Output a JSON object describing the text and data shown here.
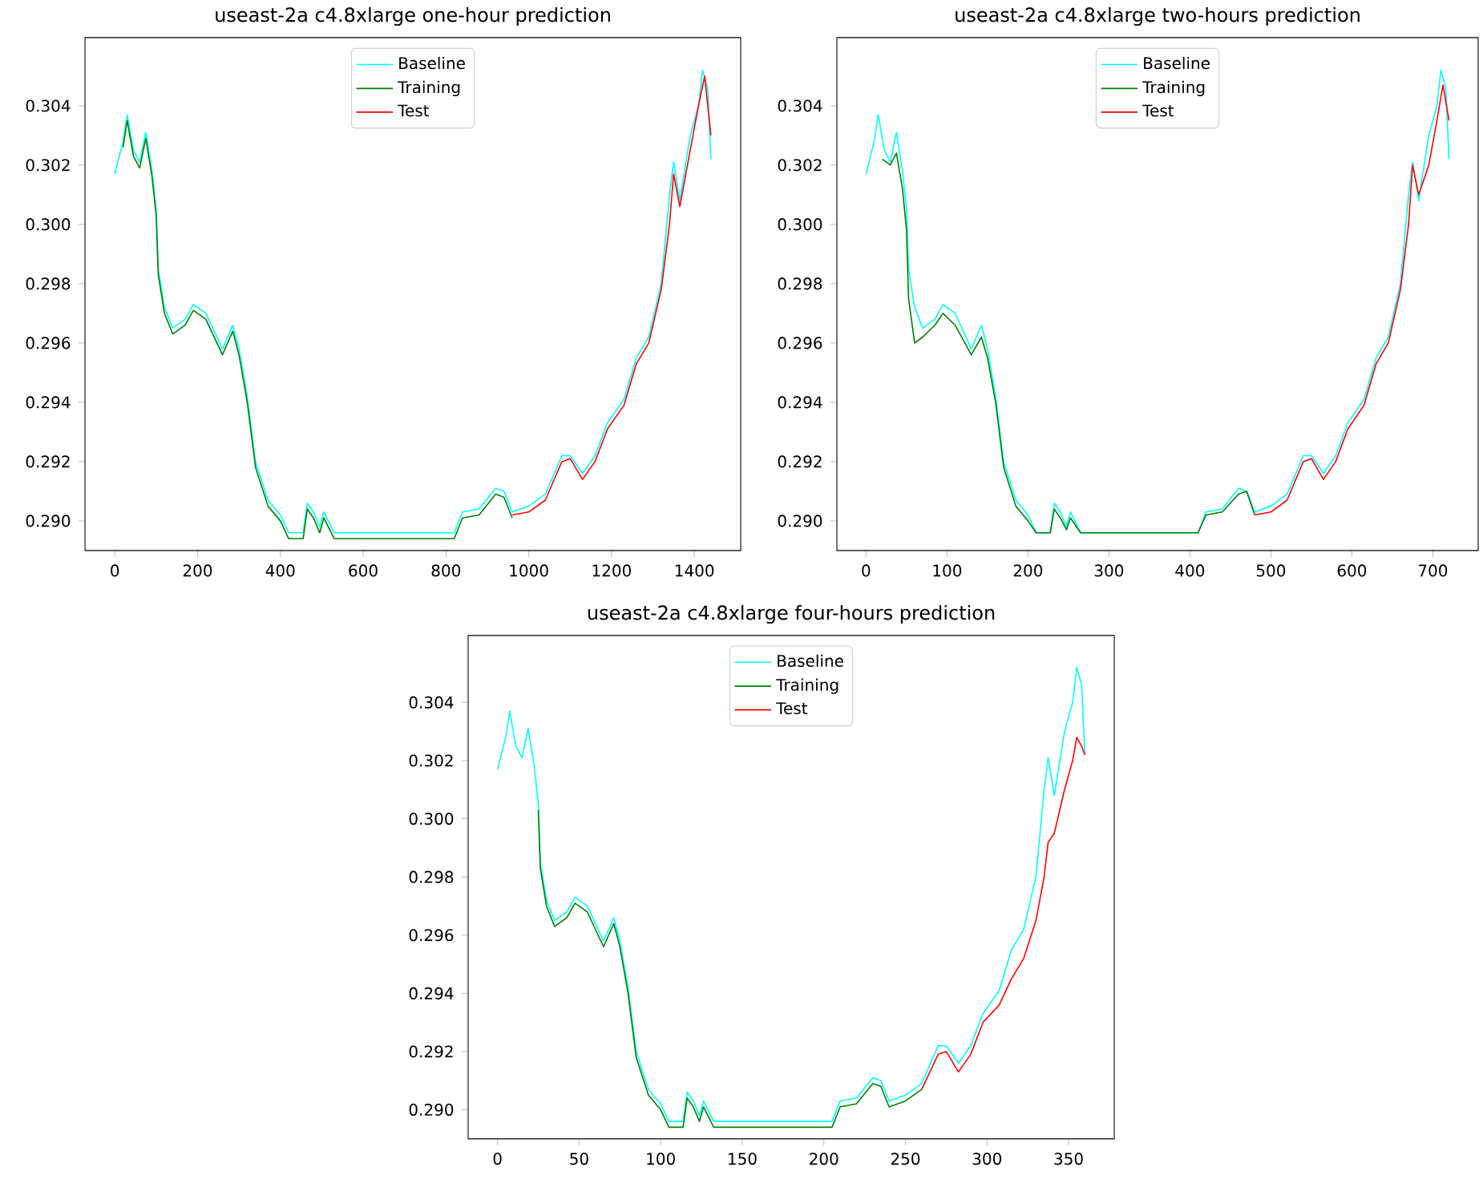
{
  "chart_data": [
    {
      "type": "line",
      "title": "useast-2a c4.8xlarge one-hour prediction",
      "xlim": [
        -72,
        1512
      ],
      "xticks": [
        0,
        200,
        400,
        600,
        800,
        1000,
        1200,
        1400
      ],
      "ylim": [
        0.289,
        0.3063
      ],
      "yticks": [
        {
          "value": 0.29,
          "label": "0.290"
        },
        {
          "value": 0.292,
          "label": "0.292"
        },
        {
          "value": 0.294,
          "label": "0.294"
        },
        {
          "value": 0.296,
          "label": "0.296"
        },
        {
          "value": 0.298,
          "label": "0.298"
        },
        {
          "value": 0.3,
          "label": "0.300"
        },
        {
          "value": 0.302,
          "label": "0.302"
        },
        {
          "value": 0.304,
          "label": "0.304"
        }
      ],
      "legend": "top",
      "line_style": "solid",
      "series": [
        {
          "name": "Baseline",
          "color": "#00ffff",
          "x": [
            0,
            20,
            30,
            45,
            60,
            75,
            90,
            100,
            105,
            120,
            140,
            170,
            190,
            220,
            260,
            285,
            300,
            320,
            340,
            370,
            400,
            420,
            455,
            465,
            480,
            495,
            505,
            530,
            820,
            840,
            880,
            920,
            940,
            960,
            1000,
            1040,
            1080,
            1100,
            1130,
            1160,
            1190,
            1230,
            1260,
            1290,
            1320,
            1340,
            1350,
            1365,
            1390,
            1410,
            1420,
            1432,
            1440
          ],
          "values": [
            0.3017,
            0.3028,
            0.3037,
            0.3025,
            0.3021,
            0.3031,
            0.3018,
            0.3005,
            0.2985,
            0.2972,
            0.2965,
            0.2968,
            0.2973,
            0.297,
            0.2958,
            0.2966,
            0.2958,
            0.2942,
            0.292,
            0.2907,
            0.2902,
            0.2896,
            0.2896,
            0.2906,
            0.2903,
            0.2898,
            0.2903,
            0.2896,
            0.2896,
            0.2903,
            0.2904,
            0.2911,
            0.291,
            0.2903,
            0.2905,
            0.2909,
            0.2922,
            0.2922,
            0.2916,
            0.2922,
            0.2933,
            0.2941,
            0.2955,
            0.2962,
            0.298,
            0.301,
            0.3021,
            0.3008,
            0.303,
            0.304,
            0.3052,
            0.3046,
            0.3022
          ]
        },
        {
          "name": "Training",
          "color": "#008000",
          "x": [
            20,
            30,
            45,
            60,
            75,
            90,
            100,
            105,
            120,
            140,
            170,
            190,
            220,
            260,
            285,
            300,
            320,
            340,
            370,
            400,
            420,
            455,
            465,
            480,
            495,
            505,
            530,
            820,
            840,
            880,
            920,
            940,
            960
          ],
          "values": [
            0.3026,
            0.3035,
            0.3023,
            0.3019,
            0.3029,
            0.3016,
            0.3003,
            0.2983,
            0.297,
            0.2963,
            0.2966,
            0.2971,
            0.2968,
            0.2956,
            0.2964,
            0.2956,
            0.294,
            0.2918,
            0.2905,
            0.29,
            0.2894,
            0.2894,
            0.2904,
            0.2901,
            0.2896,
            0.2901,
            0.2894,
            0.2894,
            0.2901,
            0.2902,
            0.2909,
            0.2908,
            0.2901
          ]
        },
        {
          "name": "Test",
          "color": "#ff0000",
          "x": [
            960,
            1000,
            1040,
            1080,
            1100,
            1130,
            1160,
            1190,
            1230,
            1260,
            1290,
            1320,
            1340,
            1350,
            1365,
            1390,
            1410,
            1425,
            1440
          ],
          "values": [
            0.2902,
            0.2903,
            0.2907,
            0.292,
            0.2921,
            0.2914,
            0.292,
            0.2931,
            0.2939,
            0.2953,
            0.296,
            0.2978,
            0.3,
            0.3017,
            0.3006,
            0.3025,
            0.304,
            0.305,
            0.303
          ]
        }
      ]
    },
    {
      "type": "line",
      "title": "useast-2a c4.8xlarge two-hours prediction",
      "xlim": [
        -36,
        756
      ],
      "xticks": [
        0,
        100,
        200,
        300,
        400,
        500,
        600,
        700
      ],
      "ylim": [
        0.289,
        0.3063
      ],
      "yticks": [
        {
          "value": 0.29,
          "label": "0.290"
        },
        {
          "value": 0.292,
          "label": "0.292"
        },
        {
          "value": 0.294,
          "label": "0.294"
        },
        {
          "value": 0.296,
          "label": "0.296"
        },
        {
          "value": 0.298,
          "label": "0.298"
        },
        {
          "value": 0.3,
          "label": "0.300"
        },
        {
          "value": 0.302,
          "label": "0.302"
        },
        {
          "value": 0.304,
          "label": "0.304"
        }
      ],
      "legend": "top",
      "line_style": "solid",
      "series": [
        {
          "name": "Baseline",
          "color": "#00ffff",
          "x": [
            0,
            10,
            15,
            22.5,
            30,
            37.5,
            45,
            50,
            52.5,
            60,
            70,
            85,
            95,
            110,
            130,
            142.5,
            150,
            160,
            170,
            185,
            200,
            210,
            227.5,
            232.5,
            240,
            247.5,
            252.5,
            265,
            410,
            420,
            440,
            460,
            470,
            480,
            500,
            520,
            540,
            550,
            565,
            580,
            595,
            615,
            630,
            645,
            660,
            670,
            675,
            682.5,
            695,
            705,
            710,
            716,
            720
          ],
          "values": [
            0.3017,
            0.3028,
            0.3037,
            0.3025,
            0.3021,
            0.3031,
            0.3018,
            0.3005,
            0.2985,
            0.2972,
            0.2965,
            0.2968,
            0.2973,
            0.297,
            0.2958,
            0.2966,
            0.2958,
            0.2942,
            0.292,
            0.2907,
            0.2902,
            0.2896,
            0.2896,
            0.2906,
            0.2903,
            0.2898,
            0.2903,
            0.2896,
            0.2896,
            0.2903,
            0.2904,
            0.2911,
            0.291,
            0.2903,
            0.2905,
            0.2909,
            0.2922,
            0.2922,
            0.2916,
            0.2922,
            0.2933,
            0.2941,
            0.2955,
            0.2962,
            0.298,
            0.301,
            0.3021,
            0.3008,
            0.303,
            0.304,
            0.3052,
            0.3046,
            0.3022
          ]
        },
        {
          "name": "Training",
          "color": "#008000",
          "x": [
            20,
            30,
            37.5,
            45,
            50,
            52.5,
            60,
            70,
            85,
            95,
            110,
            130,
            142.5,
            150,
            160,
            170,
            185,
            200,
            210,
            227.5,
            232.5,
            240,
            247.5,
            252.5,
            265,
            410,
            420,
            440,
            460,
            470,
            480
          ],
          "values": [
            0.3022,
            0.302,
            0.3024,
            0.3012,
            0.2998,
            0.2975,
            0.296,
            0.2962,
            0.2966,
            0.297,
            0.2966,
            0.2956,
            0.2962,
            0.2955,
            0.294,
            0.2918,
            0.2905,
            0.29,
            0.2896,
            0.2896,
            0.2904,
            0.2901,
            0.2897,
            0.2901,
            0.2896,
            0.2896,
            0.2902,
            0.2903,
            0.2909,
            0.291,
            0.2902
          ]
        },
        {
          "name": "Test",
          "color": "#ff0000",
          "x": [
            480,
            500,
            520,
            540,
            550,
            565,
            580,
            595,
            615,
            630,
            645,
            660,
            670,
            675,
            682.5,
            695,
            705,
            712.5,
            720
          ],
          "values": [
            0.2902,
            0.2903,
            0.2907,
            0.292,
            0.2921,
            0.2914,
            0.292,
            0.2931,
            0.2939,
            0.2953,
            0.296,
            0.2978,
            0.3,
            0.302,
            0.301,
            0.302,
            0.3035,
            0.3047,
            0.3035
          ]
        }
      ]
    },
    {
      "type": "line",
      "title": "useast-2a c4.8xlarge four-hours prediction",
      "xlim": [
        -18,
        378
      ],
      "xticks": [
        0,
        50,
        100,
        150,
        200,
        250,
        300,
        350
      ],
      "ylim": [
        0.289,
        0.3063
      ],
      "yticks": [
        {
          "value": 0.29,
          "label": "0.290"
        },
        {
          "value": 0.292,
          "label": "0.292"
        },
        {
          "value": 0.294,
          "label": "0.294"
        },
        {
          "value": 0.296,
          "label": "0.296"
        },
        {
          "value": 0.298,
          "label": "0.298"
        },
        {
          "value": 0.3,
          "label": "0.300"
        },
        {
          "value": 0.302,
          "label": "0.302"
        },
        {
          "value": 0.304,
          "label": "0.304"
        }
      ],
      "legend": "top",
      "line_style": "solid",
      "series": [
        {
          "name": "Baseline",
          "color": "#00ffff",
          "x": [
            0,
            5,
            7.5,
            11.25,
            15,
            18.75,
            22.5,
            25,
            26.25,
            30,
            35,
            42.5,
            47.5,
            55,
            65,
            71.25,
            75,
            80,
            85,
            92.5,
            100,
            105,
            113.75,
            116.25,
            120,
            123.75,
            126.25,
            132.5,
            205,
            210,
            220,
            230,
            235,
            240,
            250,
            260,
            270,
            275,
            282.5,
            290,
            297.5,
            307.5,
            315,
            322.5,
            330,
            335,
            337.5,
            341.25,
            347.5,
            352.5,
            355,
            358,
            360
          ],
          "values": [
            0.3017,
            0.3028,
            0.3037,
            0.3025,
            0.3021,
            0.3031,
            0.3018,
            0.3005,
            0.2985,
            0.2972,
            0.2965,
            0.2968,
            0.2973,
            0.297,
            0.2958,
            0.2966,
            0.2958,
            0.2942,
            0.292,
            0.2907,
            0.2902,
            0.2896,
            0.2896,
            0.2906,
            0.2903,
            0.2898,
            0.2903,
            0.2896,
            0.2896,
            0.2903,
            0.2904,
            0.2911,
            0.291,
            0.2903,
            0.2905,
            0.2909,
            0.2922,
            0.2922,
            0.2916,
            0.2922,
            0.2933,
            0.2941,
            0.2955,
            0.2962,
            0.298,
            0.301,
            0.3021,
            0.3008,
            0.303,
            0.304,
            0.3052,
            0.3046,
            0.3022
          ]
        },
        {
          "name": "Training",
          "color": "#008000",
          "x": [
            25,
            26.25,
            30,
            35,
            42.5,
            47.5,
            55,
            65,
            71.25,
            75,
            80,
            85,
            92.5,
            100,
            105,
            113.75,
            116.25,
            120,
            123.75,
            126.25,
            132.5,
            205,
            210,
            220,
            230,
            235,
            240,
            250,
            260
          ],
          "values": [
            0.3003,
            0.2983,
            0.297,
            0.2963,
            0.2966,
            0.2971,
            0.2968,
            0.2956,
            0.2964,
            0.2956,
            0.294,
            0.2918,
            0.2905,
            0.29,
            0.2894,
            0.2894,
            0.2904,
            0.2901,
            0.2896,
            0.2901,
            0.2894,
            0.2894,
            0.2901,
            0.2902,
            0.2909,
            0.2908,
            0.2901,
            0.2903,
            0.2907
          ]
        },
        {
          "name": "Test",
          "color": "#ff0000",
          "x": [
            260,
            270,
            275,
            282.5,
            290,
            297.5,
            307.5,
            315,
            322.5,
            330,
            335,
            337.5,
            341.25,
            347.5,
            352.5,
            355,
            358,
            360
          ],
          "values": [
            0.2907,
            0.2919,
            0.292,
            0.2913,
            0.2919,
            0.293,
            0.2936,
            0.2945,
            0.2952,
            0.2965,
            0.298,
            0.2992,
            0.2995,
            0.301,
            0.302,
            0.3028,
            0.3025,
            0.3022
          ]
        }
      ]
    }
  ]
}
